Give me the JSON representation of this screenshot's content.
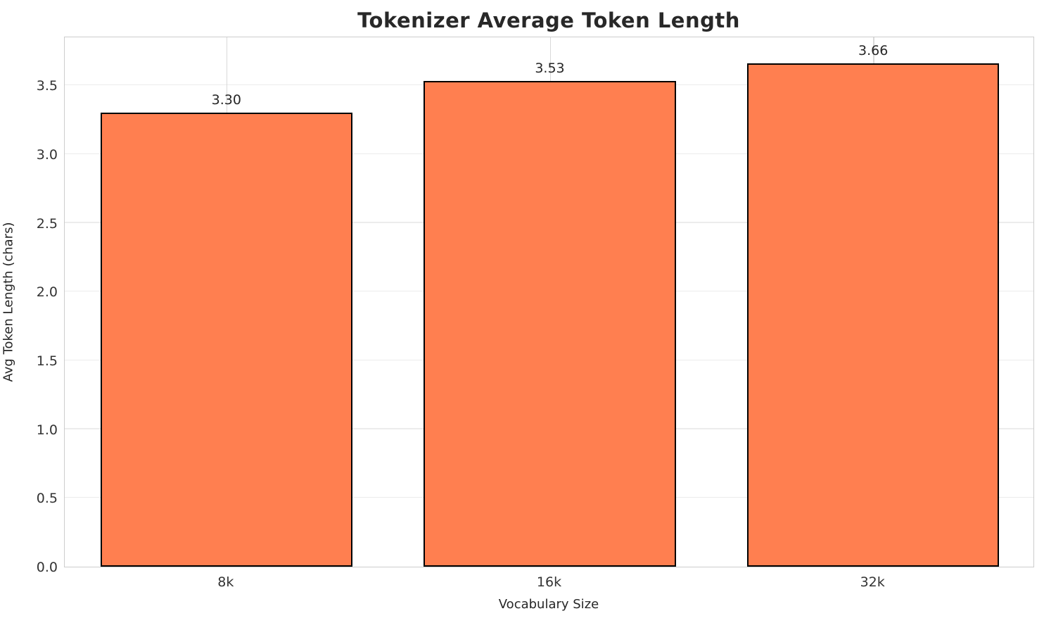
{
  "chart_data": {
    "type": "bar",
    "title": "Tokenizer Average Token Length",
    "xlabel": "Vocabulary Size",
    "ylabel": "Avg Token Length (chars)",
    "categories": [
      "8k",
      "16k",
      "32k"
    ],
    "values": [
      3.3,
      3.53,
      3.66
    ],
    "value_labels": [
      "3.30",
      "3.53",
      "3.66"
    ],
    "yticks": [
      0.0,
      0.5,
      1.0,
      1.5,
      2.0,
      2.5,
      3.0,
      3.5
    ],
    "ytick_labels": [
      "0.0",
      "0.5",
      "1.0",
      "1.5",
      "2.0",
      "2.5",
      "3.0",
      "3.5"
    ],
    "ylim": [
      0,
      3.86
    ],
    "bar_width_fraction": 0.78,
    "grid": true,
    "legend": null,
    "colors": {
      "bar_fill": "#FF7F50",
      "bar_edge": "#000000",
      "grid_h": "#ececec",
      "grid_v": "#d9d9d9",
      "spine": "#cccccc",
      "title_text": "#282828",
      "tick_text": "#333333",
      "background": "#ffffff"
    }
  }
}
